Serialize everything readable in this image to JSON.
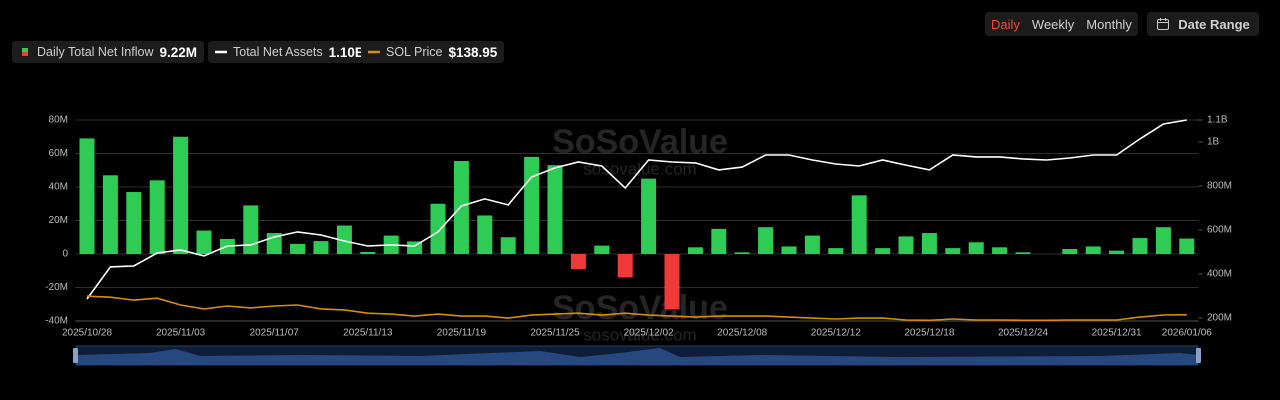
{
  "header": {
    "periods": [
      "Daily",
      "Weekly",
      "Monthly"
    ],
    "active_period": 0,
    "date_range": "Date Range"
  },
  "watermark": {
    "name": "SoSoValue",
    "url": "sosovalue.com"
  },
  "chart_data": {
    "type": "combo",
    "categories": [
      "2025/10/28",
      null,
      null,
      null,
      "2025/11/03",
      null,
      null,
      null,
      "2025/11/07",
      null,
      null,
      null,
      "2025/11/13",
      null,
      null,
      null,
      "2025/11/19",
      null,
      null,
      null,
      "2025/11/25",
      null,
      null,
      null,
      "2025/12/02",
      null,
      null,
      null,
      "2025/12/08",
      null,
      null,
      null,
      "2025/12/12",
      null,
      null,
      null,
      "2025/12/18",
      null,
      null,
      null,
      "2025/12/24",
      null,
      null,
      null,
      "2025/12/31",
      null,
      null,
      "2026/01/06"
    ],
    "series": [
      {
        "name": "Daily Total Net Inflow",
        "latest_label": "9.22M",
        "type": "bar",
        "color": "#2ecc55",
        "negative_color": "#f03a3a",
        "values": [
          69000000,
          47000000,
          37000000,
          44000000,
          70000000,
          14000000,
          9000000,
          29000000,
          12500000,
          6000000,
          7700000,
          17000000,
          1200000,
          11000000,
          7500000,
          30000000,
          55500000,
          23000000,
          10000000,
          58000000,
          53000000,
          -9000000,
          5000000,
          -14000000,
          45000000,
          -33000000,
          4000000,
          15000000,
          1000000,
          16000000,
          4500000,
          11000000,
          3500000,
          35000000,
          3500000,
          10500000,
          12500000,
          3500000,
          7000000,
          4000000,
          1000000,
          0,
          3000000,
          4500000,
          2000000,
          9500000,
          16000000,
          9220000
        ]
      },
      {
        "name": "Total Net Assets",
        "latest_label": "1.10B",
        "type": "line",
        "axis": "y2",
        "color": "#ffffff",
        "values": [
          286000000,
          432000000,
          436000000,
          495000000,
          509000000,
          482000000,
          527000000,
          532000000,
          568000000,
          591000000,
          577000000,
          550000000,
          527000000,
          532000000,
          527000000,
          591000000,
          709000000,
          741000000,
          714000000,
          841000000,
          882000000,
          909000000,
          891000000,
          791000000,
          918000000,
          909000000,
          905000000,
          873000000,
          886000000,
          941000000,
          941000000,
          918000000,
          900000000,
          891000000,
          918000000,
          895000000,
          873000000,
          941000000,
          932000000,
          932000000,
          923000000,
          918000000,
          927000000,
          941000000,
          941000000,
          1014000000,
          1082000000,
          1100000000
        ]
      },
      {
        "name": "SOL Price",
        "latest_label": "$138.95",
        "type": "line",
        "axis": "y3",
        "color": "#d98b0f",
        "values": [
          196,
          193,
          184,
          190,
          169,
          157,
          166,
          160,
          166,
          169,
          157,
          154,
          144,
          141,
          135,
          141,
          135,
          135,
          129,
          138,
          141,
          144,
          138,
          144,
          138,
          135,
          132,
          135,
          135,
          135,
          132,
          129,
          126,
          129,
          129,
          123,
          122,
          126,
          123,
          123,
          122,
          122,
          123,
          123,
          123,
          132,
          138.5,
          138.95
        ]
      }
    ],
    "ylim": [
      -40000000,
      80000000
    ],
    "yticks": [
      {
        "value": -40000000,
        "label": "-40M"
      },
      {
        "value": -20000000,
        "label": "-20M"
      },
      0,
      {
        "value": 20000000,
        "label": "20M"
      },
      {
        "value": 40000000,
        "label": "40M"
      },
      {
        "value": 60000000,
        "label": "60M"
      },
      {
        "value": 80000000,
        "label": "80M"
      }
    ],
    "y2lim": [
      186000000,
      1100000000
    ],
    "y2ticks": [
      {
        "value": 200000000,
        "label": "200M"
      },
      {
        "value": 400000000,
        "label": "400M"
      },
      {
        "value": 600000000,
        "label": "600M"
      },
      {
        "value": 800000000,
        "label": "800M"
      },
      {
        "value": 1000000000,
        "label": "1B"
      },
      {
        "value": 1100000000,
        "label": "1.1B"
      }
    ],
    "y3lim": [
      120,
      736
    ],
    "grid": true
  }
}
